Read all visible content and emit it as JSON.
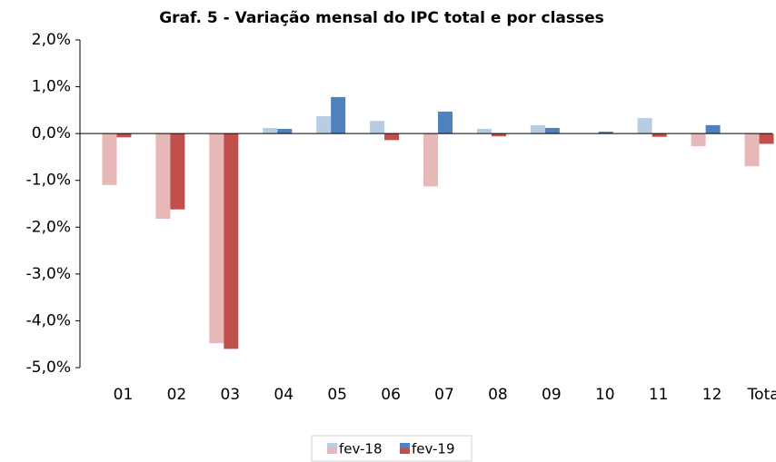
{
  "chart_data": {
    "type": "bar",
    "title": "Graf. 5 - Variação mensal do IPC total e por classes",
    "categories": [
      "01",
      "02",
      "03",
      "04",
      "05",
      "06",
      "07",
      "08",
      "09",
      "10",
      "11",
      "12",
      "Total"
    ],
    "series": [
      {
        "name": "fev-18",
        "color": "#b8cce4",
        "negative_color": "#e6b8b7",
        "values": [
          -1.1,
          -1.82,
          -4.48,
          0.12,
          0.37,
          0.27,
          -1.13,
          0.1,
          0.18,
          0,
          0.33,
          -0.27,
          -0.7
        ]
      },
      {
        "name": "fev-19",
        "color": "#4f81bd",
        "negative_color": "#c0504d",
        "values": [
          -0.08,
          -1.62,
          -4.6,
          0.1,
          0.78,
          -0.14,
          0.47,
          -0.06,
          0.12,
          0.04,
          -0.07,
          0.18,
          -0.22
        ]
      }
    ],
    "ylim": [
      -5,
      2
    ],
    "yticks": [
      {
        "value": -5,
        "label": "-5,0%"
      },
      {
        "value": -4,
        "label": "-4,0%"
      },
      {
        "value": -3,
        "label": "-3,0%"
      },
      {
        "value": -2,
        "label": "-2,0%"
      },
      {
        "value": -1,
        "label": "-1,0%"
      },
      {
        "value": 0,
        "label": "0,0%"
      },
      {
        "value": 1,
        "label": "1,0%"
      },
      {
        "value": 2,
        "label": "2,0%"
      }
    ],
    "grid": false,
    "legend": "bottom"
  }
}
